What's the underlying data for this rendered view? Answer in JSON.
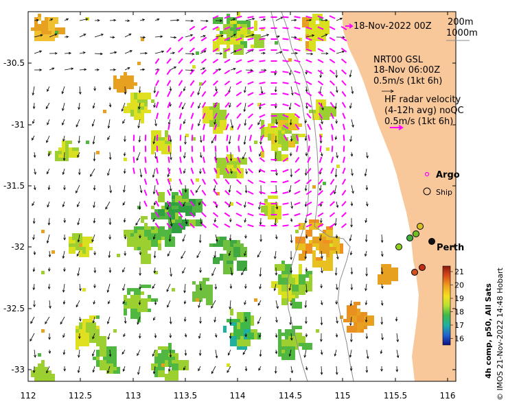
{
  "map": {
    "date_label": "18-Nov-2022 00Z",
    "depth_legend": [
      "200m",
      "1000m"
    ],
    "gsl": {
      "title": "NRT00 GSL",
      "time": "18-Nov 06:00Z",
      "scale": "0.5m/s (1kt 6h)"
    },
    "hf_radar": {
      "title": "HF radar velocity",
      "detail": "(4-12h avg) noQC",
      "scale": "0.5m/s (1kt 6h)"
    },
    "legend": {
      "argo": "Argo",
      "ship": "Ship"
    },
    "places": {
      "perth": "Perth"
    },
    "colorbar": {
      "label": "4h comp, p50, All Sats",
      "ticks": [
        "21",
        "20",
        "19",
        "18",
        "17",
        "16"
      ]
    },
    "x_ticks": [
      "112",
      "112.5",
      "113",
      "113.5",
      "114",
      "114.5",
      "115",
      "115.5",
      "116"
    ],
    "y_ticks": [
      "-30.5",
      "-31",
      "-31.5",
      "-32",
      "-32.5",
      "-33"
    ],
    "credit": "© IMOS 21-Nov-2022 14:48 Hobart",
    "colors": {
      "land": "#f9c89a",
      "hf_arrows": "#ff00ff",
      "gsl_arrows": "#000000",
      "coast": "#8a8a8a",
      "sst_warm": "#e8a020",
      "sst_mid": "#cfe020",
      "sst_cool": "#40b040"
    }
  }
}
